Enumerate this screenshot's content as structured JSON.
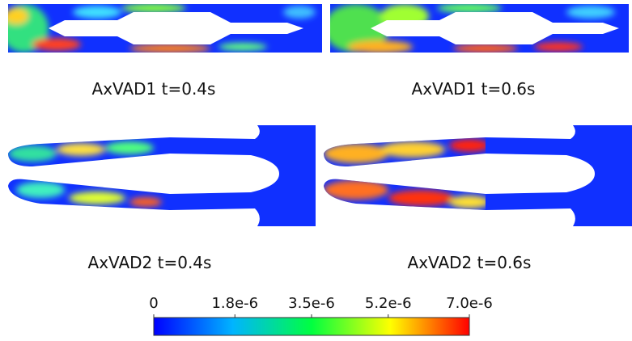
{
  "panels": [
    {
      "label": "AxVAD1 t=0.4s"
    },
    {
      "label": "AxVAD1 t=0.6s"
    },
    {
      "label": "AxVAD2 t=0.4s"
    },
    {
      "label": "AxVAD2 t=0.6s"
    }
  ],
  "colorbar": {
    "lim": [
      0,
      7e-06
    ],
    "ticks": [
      0,
      {
        "value": 1.8e-06,
        "label": "1.8e-6"
      },
      {
        "value": 3.5e-06,
        "label": "3.5e-6"
      },
      {
        "value": 5.2e-06,
        "label": "5.2e-6"
      },
      {
        "value": 7e-06,
        "label": "7.0e-6"
      }
    ]
  }
}
